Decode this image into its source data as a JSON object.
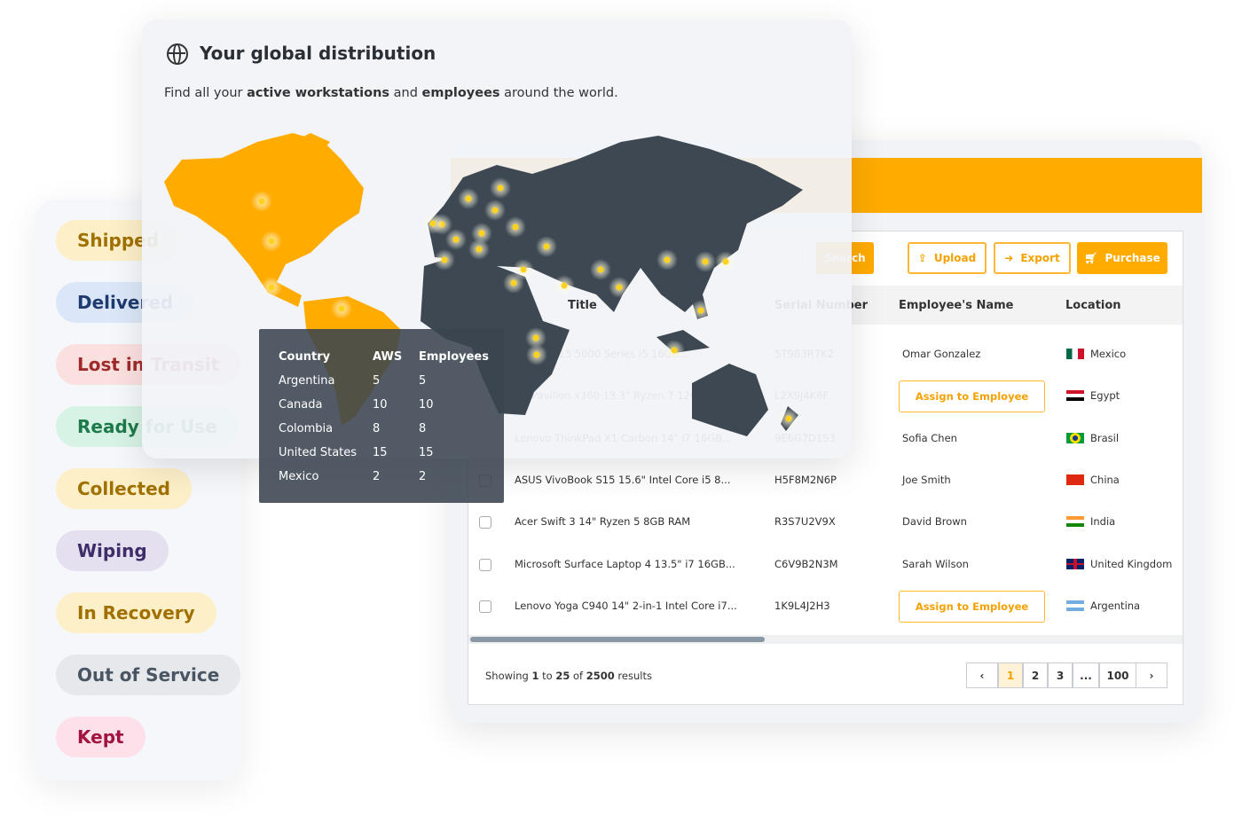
{
  "statuses": [
    {
      "label": "Shipped",
      "bg": "#fdf0c8",
      "color": "#a07000"
    },
    {
      "label": "Delivered",
      "bg": "#dbe7f8",
      "color": "#1e3a6e"
    },
    {
      "label": "Lost in Transit",
      "bg": "#fbe0e0",
      "color": "#a02a2a"
    },
    {
      "label": "Ready for Use",
      "bg": "#d6f3e5",
      "color": "#1e7a4a"
    },
    {
      "label": "Collected",
      "bg": "#fdf0c8",
      "color": "#a07000"
    },
    {
      "label": "Wiping",
      "bg": "#e5e0f0",
      "color": "#3f2d6a"
    },
    {
      "label": "In Recovery",
      "bg": "#fdf0c8",
      "color": "#a07000"
    },
    {
      "label": "Out of Service",
      "bg": "#e6e8ec",
      "color": "#4a5563"
    },
    {
      "label": "Kept",
      "bg": "#fde0ea",
      "color": "#a0143f"
    }
  ],
  "map_card": {
    "title": "Your global distribution",
    "subtitle_pre": "Find all your ",
    "subtitle_b1": "active workstations",
    "subtitle_mid": " and ",
    "subtitle_b2": "employees",
    "subtitle_post": " around the world.",
    "icon": "globe-icon",
    "tooltip": {
      "headers": [
        "Country",
        "AWS",
        "Employees"
      ],
      "rows": [
        [
          "Argentina",
          "5",
          "5"
        ],
        [
          "Canada",
          "10",
          "10"
        ],
        [
          "Colombia",
          "8",
          "8"
        ],
        [
          "United States",
          "15",
          "15"
        ],
        [
          "Mexico",
          "2",
          "2"
        ]
      ]
    }
  },
  "toolbar": {
    "search_label": "Search",
    "upload": "Upload",
    "export": "Export",
    "purchase": "Purchase",
    "accent": "#ffab00"
  },
  "table": {
    "headers": [
      "Title",
      "Serial Number",
      "Employee's Name",
      "Location"
    ],
    "assign_label": "Assign to Employee",
    "rows": [
      {
        "title": "Inspiron 15 5000 Series i5 16GB...",
        "serial": "5T9B3R7K2",
        "employee": "Omar Gonzalez",
        "location": "Mexico"
      },
      {
        "title": "HP Pavilion x360 13.3\" Ryzen 7 12GB...",
        "serial": "L2X9J4K6F",
        "employee": "",
        "location": "Egypt"
      },
      {
        "title": "Lenovo ThinkPad X1 Carbon 14\" i7 16GB...",
        "serial": "9E6G7D1S3",
        "employee": "Sofia Chen",
        "location": "Brasil"
      },
      {
        "title": "ASUS VivoBook S15 15.6\" Intel Core i5 8...",
        "serial": "H5F8M2N6P",
        "employee": "Joe Smith",
        "location": "China"
      },
      {
        "title": "Acer Swift 3 14\" Ryzen 5 8GB RAM",
        "serial": "R3S7U2V9X",
        "employee": "David Brown",
        "location": "India"
      },
      {
        "title": "Microsoft Surface Laptop 4 13.5\" i7 16GB...",
        "serial": "C6V9B2N3M",
        "employee": "Sarah Wilson",
        "location": "United Kingdom"
      },
      {
        "title": "Lenovo Yoga C940 14\" 2-in-1 Intel Core i7...",
        "serial": "1K9L4J2H3",
        "employee": "",
        "location": "Argentina"
      }
    ]
  },
  "footer": {
    "pre": "Showing ",
    "from": "1",
    "to_word": " to ",
    "to": "25",
    "of_word": " of ",
    "total": "2500",
    "post": " results",
    "pages": [
      "1",
      "2",
      "3",
      "...",
      "100"
    ],
    "current_page": "1"
  }
}
